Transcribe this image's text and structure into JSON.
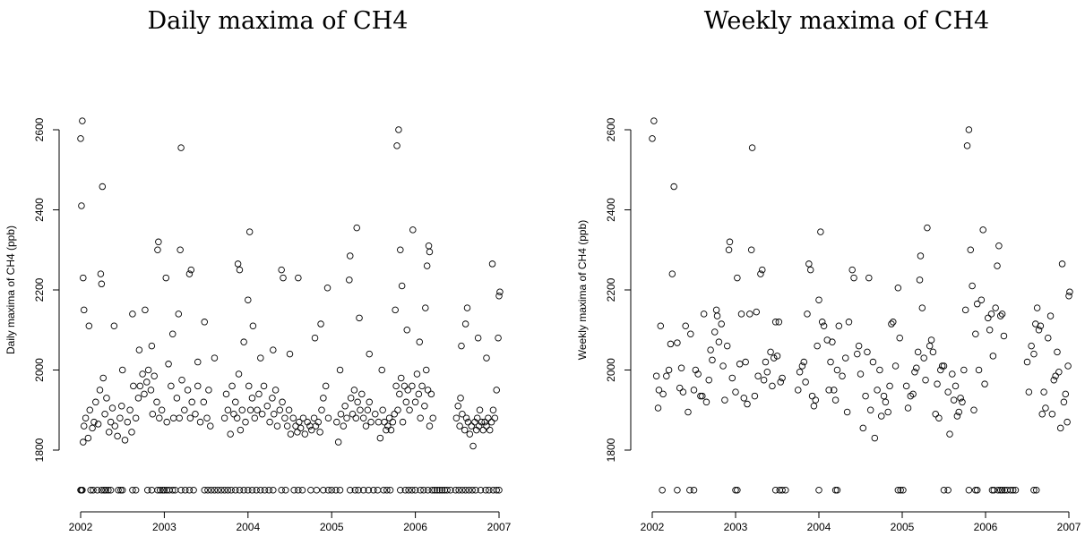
{
  "chart_data": [
    {
      "type": "scatter",
      "title": "Daily maxima of CH4",
      "ylabel": "Daily maxima of CH4 (ppb)",
      "color": "#000000",
      "xlim": [
        2002,
        2007
      ],
      "ylim": [
        1680,
        2640
      ],
      "xticks": [
        2002,
        2003,
        2004,
        2005,
        2006,
        2007
      ],
      "yticks": [
        1800,
        2000,
        2200,
        2400,
        2600
      ],
      "x": [
        2002.03,
        2002.04,
        2002.06,
        2002.09,
        2002.11,
        2002.14,
        2002.16,
        2002.18,
        2002.21,
        2002.23,
        2002.27,
        2002.29,
        2002.31,
        2002.34,
        2002.36,
        2002.38,
        2002.41,
        2002.44,
        2002.47,
        2002.49,
        2002.53,
        2002.56,
        2002.59,
        2002.61,
        2002.63,
        2002.66,
        2002.69,
        2002.71,
        2002.74,
        2002.76,
        2002.79,
        2002.81,
        2002.84,
        2002.86,
        2002.88,
        2002.91,
        2002.94,
        2002.97,
        2003.03,
        2003.08,
        2003.11,
        2003.15,
        2003.18,
        2003.21,
        2003.24,
        2003.28,
        2003.31,
        2003.33,
        2003.37,
        2003.4,
        2003.43,
        2003.47,
        2003.51,
        2003.53,
        2003.55,
        2003.72,
        2003.74,
        2003.76,
        2003.79,
        2003.81,
        2003.83,
        2003.85,
        2003.87,
        2003.89,
        2003.91,
        2003.93,
        2003.97,
        2004.01,
        2004.03,
        2004.05,
        2004.08,
        2004.11,
        2004.13,
        2004.17,
        2004.19,
        2004.23,
        2004.26,
        2004.29,
        2004.31,
        2004.33,
        2004.35,
        2004.38,
        2004.41,
        2004.44,
        2004.47,
        2004.49,
        2004.51,
        2004.54,
        2004.57,
        2004.59,
        2004.61,
        2004.63,
        2004.66,
        2004.68,
        2004.71,
        2004.74,
        2004.76,
        2004.79,
        2004.81,
        2004.84,
        2004.86,
        2004.88,
        2004.9,
        2004.93,
        2004.96,
        2005.06,
        2005.08,
        2005.11,
        2005.14,
        2005.16,
        2005.18,
        2005.23,
        2005.25,
        2005.27,
        2005.29,
        2005.31,
        2005.34,
        2005.36,
        2005.38,
        2005.41,
        2005.43,
        2005.45,
        2005.47,
        2005.52,
        2005.56,
        2005.58,
        2005.61,
        2005.63,
        2005.65,
        2005.67,
        2005.69,
        2005.71,
        2005.73,
        2005.75,
        2005.77,
        2005.79,
        2005.81,
        2005.83,
        2005.85,
        2005.87,
        2005.89,
        2005.91,
        2005.93,
        2005.96,
        2006.0,
        2006.02,
        2006.04,
        2006.06,
        2006.08,
        2006.11,
        2006.13,
        2006.15,
        2006.17,
        2006.19,
        2006.21,
        2006.49,
        2006.51,
        2006.53,
        2006.54,
        2006.56,
        2006.59,
        2006.61,
        2006.63,
        2006.65,
        2006.67,
        2006.69,
        2006.71,
        2006.73,
        2006.74,
        2006.76,
        2006.77,
        2006.79,
        2006.81,
        2006.83,
        2006.85,
        2006.87,
        2006.89,
        2006.91,
        2006.93,
        2006.95,
        2006.97,
        2002.0,
        2002.02,
        2002.01,
        2002.03,
        2002.04,
        2002.1,
        2002.24,
        2002.25,
        2002.26,
        2002.4,
        2002.62,
        2002.77,
        2002.92,
        2002.93,
        2003.02,
        2003.05,
        2003.17,
        2003.19,
        2003.2,
        2003.3,
        2003.32,
        2003.48,
        2003.88,
        2003.9,
        2004.0,
        2004.02,
        2004.06,
        2004.4,
        2004.42,
        2004.6,
        2004.95,
        2004.87,
        2005.21,
        2005.22,
        2005.3,
        2005.33,
        2005.76,
        2005.78,
        2005.8,
        2005.82,
        2005.84,
        2005.97,
        2006.14,
        2006.16,
        2006.17,
        2006.12,
        2006.6,
        2006.62,
        2006.92,
        2007.0,
        2007.01,
        2006.99,
        2002.5,
        2002.7,
        2002.85,
        2003.1,
        2003.4,
        2003.6,
        2003.95,
        2004.15,
        2004.3,
        2004.5,
        2004.8,
        2005.1,
        2005.45,
        2005.6,
        2005.9,
        2006.05,
        2006.55,
        2006.75,
        2006.85,
        2002.0,
        2002.01,
        2002.02,
        2002.12,
        2002.15,
        2002.2,
        2002.25,
        2002.28,
        2002.3,
        2002.33,
        2002.36,
        2002.45,
        2002.48,
        2002.5,
        2002.62,
        2002.66,
        2002.8,
        2002.85,
        2002.92,
        2002.95,
        2002.98,
        2003.0,
        2003.03,
        2003.06,
        2003.1,
        2003.13,
        2003.2,
        2003.25,
        2003.3,
        2003.35,
        2003.48,
        2003.52,
        2003.56,
        2003.6,
        2003.64,
        2003.68,
        2003.72,
        2003.76,
        2003.8,
        2003.85,
        2003.9,
        2003.95,
        2004.0,
        2004.05,
        2004.1,
        2004.15,
        2004.2,
        2004.25,
        2004.3,
        2004.4,
        2004.45,
        2004.55,
        2004.6,
        2004.65,
        2004.75,
        2004.82,
        2004.9,
        2004.96,
        2005.0,
        2005.05,
        2005.1,
        2005.22,
        2005.28,
        2005.32,
        2005.38,
        2005.44,
        2005.5,
        2005.55,
        2005.62,
        2005.66,
        2005.7,
        2005.82,
        2005.88,
        2005.92,
        2005.96,
        2006.0,
        2006.06,
        2006.1,
        2006.15,
        2006.2,
        2006.23,
        2006.26,
        2006.29,
        2006.32,
        2006.35,
        2006.38,
        2006.42,
        2006.48,
        2006.52,
        2006.56,
        2006.6,
        2006.64,
        2006.68,
        2006.72,
        2006.78,
        2006.84,
        2006.88,
        2006.93,
        2006.97,
        2007.0
      ],
      "values": [
        1820,
        1860,
        1880,
        1830,
        1900,
        1855,
        1870,
        1920,
        1865,
        1950,
        1980,
        1890,
        1930,
        1845,
        1870,
        1905,
        1860,
        1835,
        1880,
        1910,
        1825,
        1870,
        1900,
        1845,
        1960,
        1880,
        1930,
        1960,
        1990,
        1940,
        1970,
        2000,
        1950,
        1890,
        1985,
        1920,
        1880,
        1900,
        1870,
        1960,
        1880,
        1930,
        1880,
        1975,
        1900,
        1950,
        1880,
        1920,
        1890,
        1960,
        1870,
        1920,
        1880,
        1950,
        1860,
        1880,
        1940,
        1900,
        1840,
        1960,
        1890,
        1920,
        1880,
        1990,
        1850,
        1900,
        1870,
        1960,
        1900,
        1930,
        1880,
        1900,
        1940,
        1890,
        1960,
        1910,
        1870,
        1930,
        1890,
        1950,
        1860,
        1900,
        1920,
        1880,
        1860,
        1900,
        1840,
        1880,
        1860,
        1845,
        1870,
        1855,
        1880,
        1840,
        1870,
        1860,
        1850,
        1880,
        1860,
        1870,
        1845,
        1900,
        1930,
        1960,
        1880,
        1870,
        1820,
        1890,
        1860,
        1910,
        1880,
        1930,
        1890,
        1950,
        1880,
        1920,
        1900,
        1940,
        1880,
        1860,
        1900,
        1920,
        1870,
        1890,
        1870,
        1830,
        1900,
        1870,
        1850,
        1860,
        1880,
        1850,
        1870,
        1890,
        1960,
        1900,
        1940,
        1980,
        1870,
        1960,
        1920,
        1950,
        1900,
        1960,
        1920,
        1990,
        1940,
        1880,
        1960,
        1910,
        2000,
        1950,
        1860,
        1940,
        1880,
        1880,
        1910,
        1860,
        1930,
        1890,
        1850,
        1880,
        1870,
        1840,
        1860,
        1810,
        1870,
        1850,
        1880,
        1860,
        1900,
        1870,
        1850,
        1870,
        1860,
        1880,
        1850,
        1870,
        1900,
        1880,
        1950,
        2578,
        2622,
        2410,
        2230,
        2150,
        2110,
        2240,
        2215,
        2458,
        2110,
        2140,
        2150,
        2300,
        2320,
        2230,
        2015,
        2140,
        2300,
        2555,
        2240,
        2250,
        2120,
        2265,
        2250,
        2175,
        2345,
        2110,
        2250,
        2230,
        2230,
        2205,
        2115,
        2225,
        2285,
        2355,
        2130,
        2150,
        2560,
        2600,
        2300,
        2210,
        2350,
        2260,
        2310,
        2295,
        2155,
        2115,
        2155,
        2265,
        2185,
        2195,
        2080,
        2000,
        2050,
        2060,
        2090,
        2020,
        2030,
        2070,
        2030,
        2050,
        2040,
        2080,
        2000,
        2040,
        2000,
        2100,
        2070,
        2060,
        2080,
        2030,
        1700,
        1700,
        1700,
        1700,
        1700,
        1700,
        1700,
        1700,
        1700,
        1700,
        1700,
        1700,
        1700,
        1700,
        1700,
        1700,
        1700,
        1700,
        1700,
        1700,
        1700,
        1700,
        1700,
        1700,
        1700,
        1700,
        1700,
        1700,
        1700,
        1700,
        1700,
        1700,
        1700,
        1700,
        1700,
        1700,
        1700,
        1700,
        1700,
        1700,
        1700,
        1700,
        1700,
        1700,
        1700,
        1700,
        1700,
        1700,
        1700,
        1700,
        1700,
        1700,
        1700,
        1700,
        1700,
        1700,
        1700,
        1700,
        1700,
        1700,
        1700,
        1700,
        1700,
        1700,
        1700,
        1700,
        1700,
        1700,
        1700,
        1700,
        1700,
        1700,
        1700,
        1700,
        1700,
        1700,
        1700,
        1700,
        1700,
        1700,
        1700,
        1700,
        1700,
        1700,
        1700,
        1700,
        1700,
        1700,
        1700,
        1700,
        1700,
        1700,
        1700,
        1700,
        1700,
        1700,
        1700,
        1700,
        1700,
        1700
      ]
    },
    {
      "type": "scatter",
      "title": "Weekly maxima of CH4",
      "ylabel": "Weekly maxima of CH4 (ppb)",
      "color": "#000000",
      "xlim": [
        2002,
        2007
      ],
      "ylim": [
        1680,
        2640
      ],
      "xticks": [
        2002,
        2003,
        2004,
        2005,
        2006,
        2007
      ],
      "yticks": [
        1800,
        2000,
        2200,
        2400,
        2600
      ],
      "x": [
        2002.0,
        2002.02,
        2002.05,
        2002.07,
        2002.08,
        2002.1,
        2002.13,
        2002.17,
        2002.2,
        2002.22,
        2002.24,
        2002.26,
        2002.3,
        2002.33,
        2002.35,
        2002.37,
        2002.4,
        2002.43,
        2002.46,
        2002.5,
        2002.52,
        2002.55,
        2002.58,
        2002.6,
        2002.62,
        2002.65,
        2002.68,
        2002.7,
        2002.72,
        2002.75,
        2002.77,
        2002.78,
        2002.8,
        2002.83,
        2002.85,
        2002.87,
        2002.9,
        2002.92,
        2002.93,
        2002.96,
        2003.0,
        2003.02,
        2003.05,
        2003.07,
        2003.1,
        2003.12,
        2003.14,
        2003.17,
        2003.19,
        2003.2,
        2003.23,
        2003.25,
        2003.27,
        2003.3,
        2003.32,
        2003.34,
        2003.36,
        2003.38,
        2003.42,
        2003.44,
        2003.46,
        2003.48,
        2003.5,
        2003.52,
        2003.54,
        2003.56,
        2003.75,
        2003.77,
        2003.8,
        2003.82,
        2003.84,
        2003.86,
        2003.88,
        2003.9,
        2003.92,
        2003.94,
        2003.96,
        2003.98,
        2004.0,
        2004.02,
        2004.04,
        2004.06,
        2004.1,
        2004.12,
        2004.14,
        2004.16,
        2004.18,
        2004.2,
        2004.22,
        2004.24,
        2004.28,
        2004.32,
        2004.34,
        2004.36,
        2004.4,
        2004.42,
        2004.46,
        2004.48,
        2004.5,
        2004.53,
        2004.56,
        2004.58,
        2004.6,
        2004.62,
        2004.65,
        2004.67,
        2004.7,
        2004.73,
        2004.75,
        2004.78,
        2004.8,
        2004.83,
        2004.85,
        2004.87,
        2004.89,
        2004.92,
        2004.95,
        2004.97,
        2005.05,
        2005.07,
        2005.1,
        2005.13,
        2005.15,
        2005.17,
        2005.19,
        2005.21,
        2005.22,
        2005.24,
        2005.26,
        2005.28,
        2005.3,
        2005.33,
        2005.35,
        2005.37,
        2005.4,
        2005.42,
        2005.44,
        2005.46,
        2005.48,
        2005.5,
        2005.55,
        2005.57,
        2005.6,
        2005.62,
        2005.64,
        2005.66,
        2005.68,
        2005.7,
        2005.72,
        2005.74,
        2005.76,
        2005.78,
        2005.8,
        2005.82,
        2005.84,
        2005.86,
        2005.88,
        2005.9,
        2005.92,
        2005.95,
        2005.97,
        2005.99,
        2006.03,
        2006.05,
        2006.07,
        2006.09,
        2006.12,
        2006.14,
        2006.16,
        2006.18,
        2006.2,
        2006.22,
        2006.5,
        2006.52,
        2006.55,
        2006.58,
        2006.6,
        2006.62,
        2006.64,
        2006.66,
        2006.68,
        2006.7,
        2006.72,
        2006.75,
        2006.78,
        2006.8,
        2006.82,
        2006.84,
        2006.86,
        2006.88,
        2006.9,
        2006.92,
        2006.94,
        2006.96,
        2006.98,
        2006.99,
        2007.0,
        2007.01,
        2002.12,
        2002.3,
        2002.45,
        2002.5,
        2003.0,
        2003.02,
        2003.48,
        2003.53,
        2003.56,
        2003.6,
        2004.0,
        2004.2,
        2004.22,
        2004.95,
        2004.98,
        2005.01,
        2005.5,
        2005.55,
        2005.8,
        2005.88,
        2005.9,
        2006.08,
        2006.1,
        2006.15,
        2006.18,
        2006.2,
        2006.23,
        2006.26,
        2006.3,
        2006.33,
        2006.36,
        2006.58,
        2006.61
      ],
      "values": [
        2578,
        2622,
        1985,
        1905,
        1950,
        2110,
        1940,
        1985,
        2000,
        2065,
        2240,
        2458,
        2068,
        1955,
        2005,
        1945,
        2110,
        1895,
        2090,
        1950,
        2000,
        1990,
        1935,
        1935,
        2140,
        1920,
        1975,
        2050,
        2025,
        2095,
        2150,
        2135,
        2070,
        2115,
        2010,
        1925,
        2060,
        2300,
        2320,
        1980,
        1945,
        2230,
        2015,
        2140,
        1930,
        2020,
        1915,
        2140,
        2300,
        2555,
        1935,
        2145,
        1985,
        2240,
        2250,
        1975,
        2020,
        1995,
        2045,
        1960,
        2030,
        2120,
        2035,
        2120,
        1970,
        1980,
        1950,
        1995,
        2010,
        2020,
        1970,
        2140,
        2265,
        2250,
        1935,
        1910,
        1925,
        2060,
        2175,
        2345,
        2120,
        2110,
        2075,
        1950,
        2020,
        2070,
        1950,
        1925,
        2000,
        2110,
        1985,
        2030,
        1895,
        2120,
        2250,
        2230,
        2040,
        2060,
        1990,
        1855,
        1935,
        2045,
        2230,
        1900,
        2020,
        1830,
        1950,
        2000,
        1885,
        1935,
        1920,
        1895,
        1960,
        2115,
        2120,
        2010,
        2205,
        2080,
        1960,
        1905,
        1935,
        1940,
        1995,
        2005,
        2045,
        2225,
        2285,
        2155,
        2030,
        1975,
        2355,
        2060,
        2075,
        2045,
        1890,
        1965,
        1880,
        2000,
        2010,
        2010,
        1945,
        1840,
        1990,
        1925,
        1960,
        1885,
        1895,
        1930,
        1920,
        2000,
        2150,
        2560,
        2600,
        2300,
        2210,
        1900,
        2090,
        2165,
        2000,
        2175,
        2350,
        1965,
        2130,
        2100,
        2140,
        2035,
        2155,
        2260,
        2310,
        2135,
        2140,
        2085,
        2020,
        1945,
        2060,
        2040,
        2115,
        2155,
        2100,
        2110,
        1890,
        1945,
        1905,
        2080,
        2135,
        1890,
        1975,
        1985,
        2045,
        1995,
        1855,
        2265,
        1920,
        1940,
        1870,
        2010,
        2185,
        2195,
        1700,
        1700,
        1700,
        1700,
        1700,
        1700,
        1700,
        1700,
        1700,
        1700,
        1700,
        1700,
        1700,
        1700,
        1700,
        1700,
        1700,
        1700,
        1700,
        1700,
        1700,
        1700,
        1700,
        1700,
        1700,
        1700,
        1700,
        1700,
        1700,
        1700,
        1700,
        1700,
        1700
      ]
    }
  ]
}
